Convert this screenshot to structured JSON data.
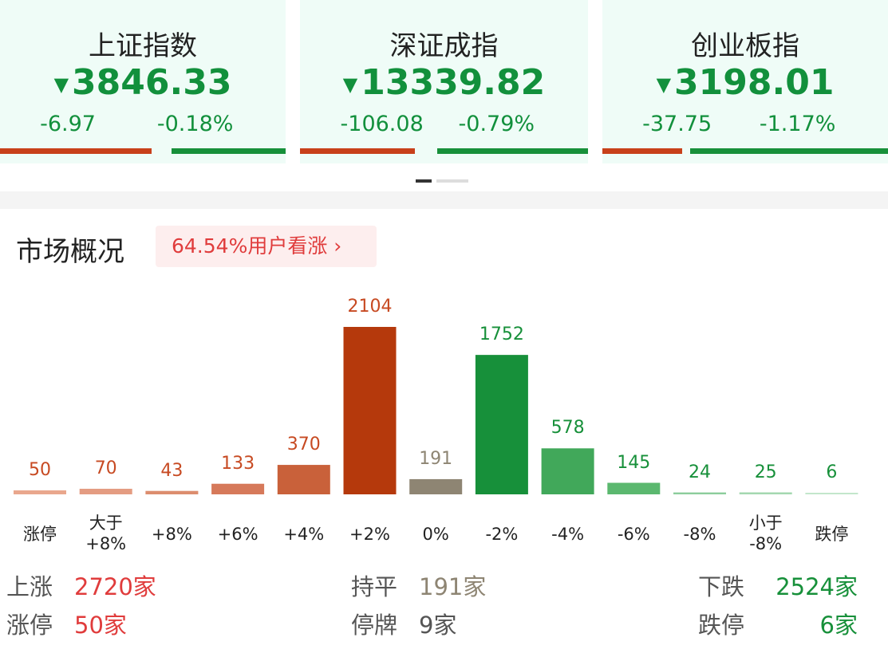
{
  "indices": [
    {
      "name": "上证指数",
      "value": "3846.33",
      "change": "-6.97",
      "pct": "-0.18%"
    },
    {
      "name": "深证成指",
      "value": "13339.82",
      "change": "-106.08",
      "pct": "-0.79%"
    },
    {
      "name": "创业板指",
      "value": "3198.01",
      "change": "-37.75",
      "pct": "-1.17%"
    }
  ],
  "market": {
    "title": "市场概况",
    "sentiment": "64.54%用户看涨",
    "categories": [
      "涨停",
      "大于\n+8%",
      "+8%",
      "+6%",
      "+4%",
      "+2%",
      "0%",
      "-2%",
      "-4%",
      "-6%",
      "-8%",
      "小于\n-8%",
      "跌停"
    ],
    "values": [
      50,
      70,
      43,
      133,
      370,
      2104,
      191,
      1752,
      578,
      145,
      24,
      25,
      6
    ],
    "colors": [
      "#e9a78d",
      "#e49c82",
      "#dc8d6e",
      "#d6795a",
      "#c9613a",
      "#b5390c",
      "#8e8573",
      "#17903a",
      "#41a85a",
      "#5bb86f",
      "#8ccd9c",
      "#a4d8b0",
      "#c3e6cb"
    ],
    "label_colors": [
      "#c74a22",
      "#c74a22",
      "#c74a22",
      "#c74a22",
      "#c74a22",
      "#c74a22",
      "#8e8573",
      "#17903a",
      "#17903a",
      "#17903a",
      "#17903a",
      "#17903a",
      "#17903a"
    ]
  },
  "summary": [
    [
      {
        "label": "上涨",
        "value": "2720家",
        "color": "#e03c3c"
      },
      {
        "label": "持平",
        "value": "191家",
        "color": "#8e8573"
      },
      {
        "label": "下跌",
        "value": "2524家",
        "color": "#17903a"
      }
    ],
    [
      {
        "label": "涨停",
        "value": "50家",
        "color": "#e03c3c"
      },
      {
        "label": "停牌",
        "value": "9家",
        "color": "#555"
      },
      {
        "label": "跌停",
        "value": "6家",
        "color": "#17903a"
      }
    ]
  ]
}
